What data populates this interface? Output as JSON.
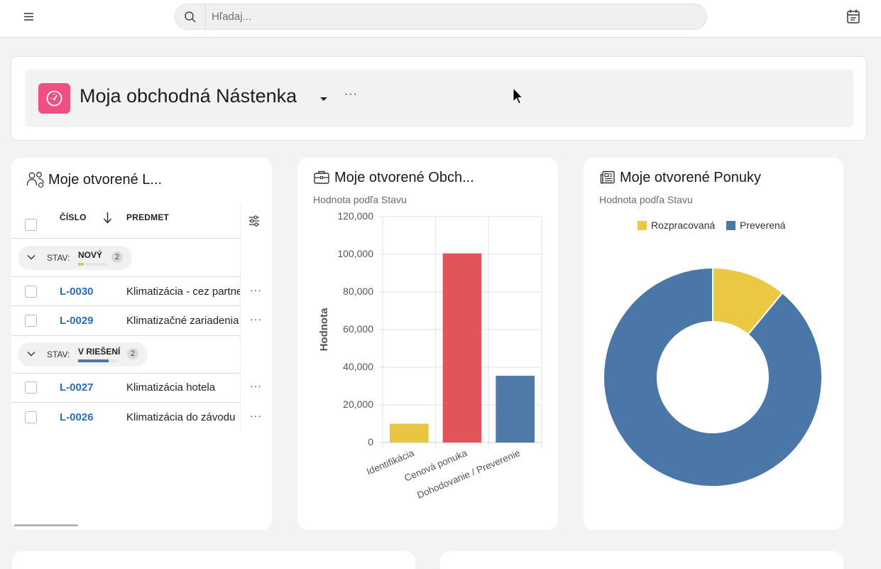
{
  "topbar": {
    "search_placeholder": "Hľadaj..."
  },
  "hero": {
    "title": "Moja obchodná Nástenka",
    "more": "···"
  },
  "leads": {
    "title": "Moje otvorené L...",
    "columns": {
      "number": "ČÍSLO",
      "subject": "PREDMET"
    },
    "groups": [
      {
        "label": "STAV:",
        "value": "NOVÝ",
        "count": "2",
        "color": "#e8c547",
        "rows": [
          {
            "id": "L-0030",
            "subject": "Klimatizácia - cez partnera",
            "more": "···"
          },
          {
            "id": "L-0029",
            "subject": "Klimatizačné zariadenia",
            "more": "···"
          }
        ]
      },
      {
        "label": "STAV:",
        "value": "V RIEŠENÍ",
        "count": "2",
        "color": "#4a76a8",
        "rows": [
          {
            "id": "L-0027",
            "subject": "Klimatizácia hotela",
            "more": "···"
          },
          {
            "id": "L-0026",
            "subject": "Klimatizácia do závodu",
            "more": "···"
          }
        ]
      }
    ]
  },
  "deals": {
    "title": "Moje otvorené Obch...",
    "subtitle": "Hodnota podľa Stavu"
  },
  "offers": {
    "title": "Moje otvorené Ponuky",
    "subtitle": "Hodnota podľa Stavu"
  },
  "chart_data": [
    {
      "type": "bar",
      "ylabel": "Hodnota",
      "categories": [
        "Identifikácia",
        "Cenová ponuka",
        "Dohodovanie / Preverenie"
      ],
      "values": [
        10000,
        100500,
        35500
      ],
      "colors": [
        "#e9c544",
        "#e1555a",
        "#4f79a7"
      ],
      "ylim": [
        0,
        120000
      ],
      "yticks": [
        "0",
        "20,000",
        "40,000",
        "60,000",
        "80,000",
        "100,000",
        "120,000"
      ],
      "grid": true
    },
    {
      "type": "pie",
      "donut": true,
      "legend_position": "top",
      "categories": [
        "Rozpracovaná",
        "Preverená"
      ],
      "values": [
        11,
        89
      ],
      "colors": [
        "#eac844",
        "#4a76a8"
      ]
    }
  ]
}
